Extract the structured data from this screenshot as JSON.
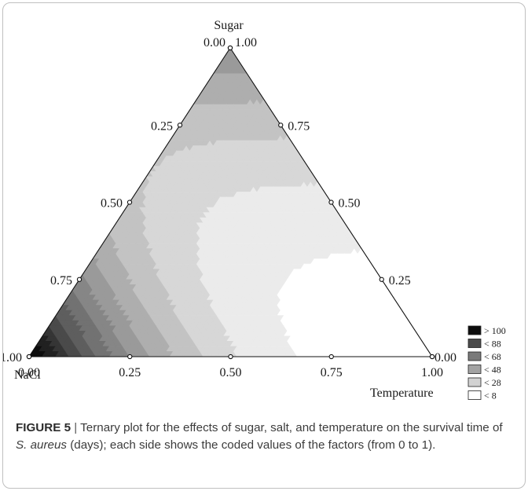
{
  "chart_data": {
    "type": "ternary",
    "axes": {
      "top": "Sugar",
      "left": "NaCl",
      "right": "Temperature"
    },
    "ticks": {
      "bottom_edge": [
        "0.00",
        "0.25",
        "0.50",
        "0.75",
        "1.00"
      ],
      "left_edge": [
        "1.00",
        "0.75",
        "0.50",
        "0.25",
        "0.00"
      ],
      "right_edge": [
        "1.00",
        "0.75",
        "0.50",
        "0.25",
        "0.00"
      ],
      "values": [
        0,
        0.25,
        0.5,
        0.75,
        1
      ]
    },
    "legend": {
      "placement": "bottom-right",
      "entries": [
        {
          "label": "> 100",
          "color": "#0d0d0d"
        },
        {
          "label": "< 88",
          "color": "#4a4a4a"
        },
        {
          "label": "< 68",
          "color": "#7a7a7a"
        },
        {
          "label": "< 48",
          "color": "#a3a3a3"
        },
        {
          "label": "< 28",
          "color": "#d2d2d2"
        },
        {
          "label": "< 8",
          "color": "#ffffff"
        }
      ]
    },
    "colorscale": {
      "darkest": "#0d0d0d",
      "lightest": "#ffffff"
    }
  },
  "caption": {
    "label": "FIGURE 5",
    "separator": " | ",
    "text_before": "Ternary plot for the effects of sugar, salt, and temperature on the survival time of ",
    "organism": "S. aureus",
    "text_after": " (days); each side shows the coded values of the factors (from 0 to 1)."
  }
}
